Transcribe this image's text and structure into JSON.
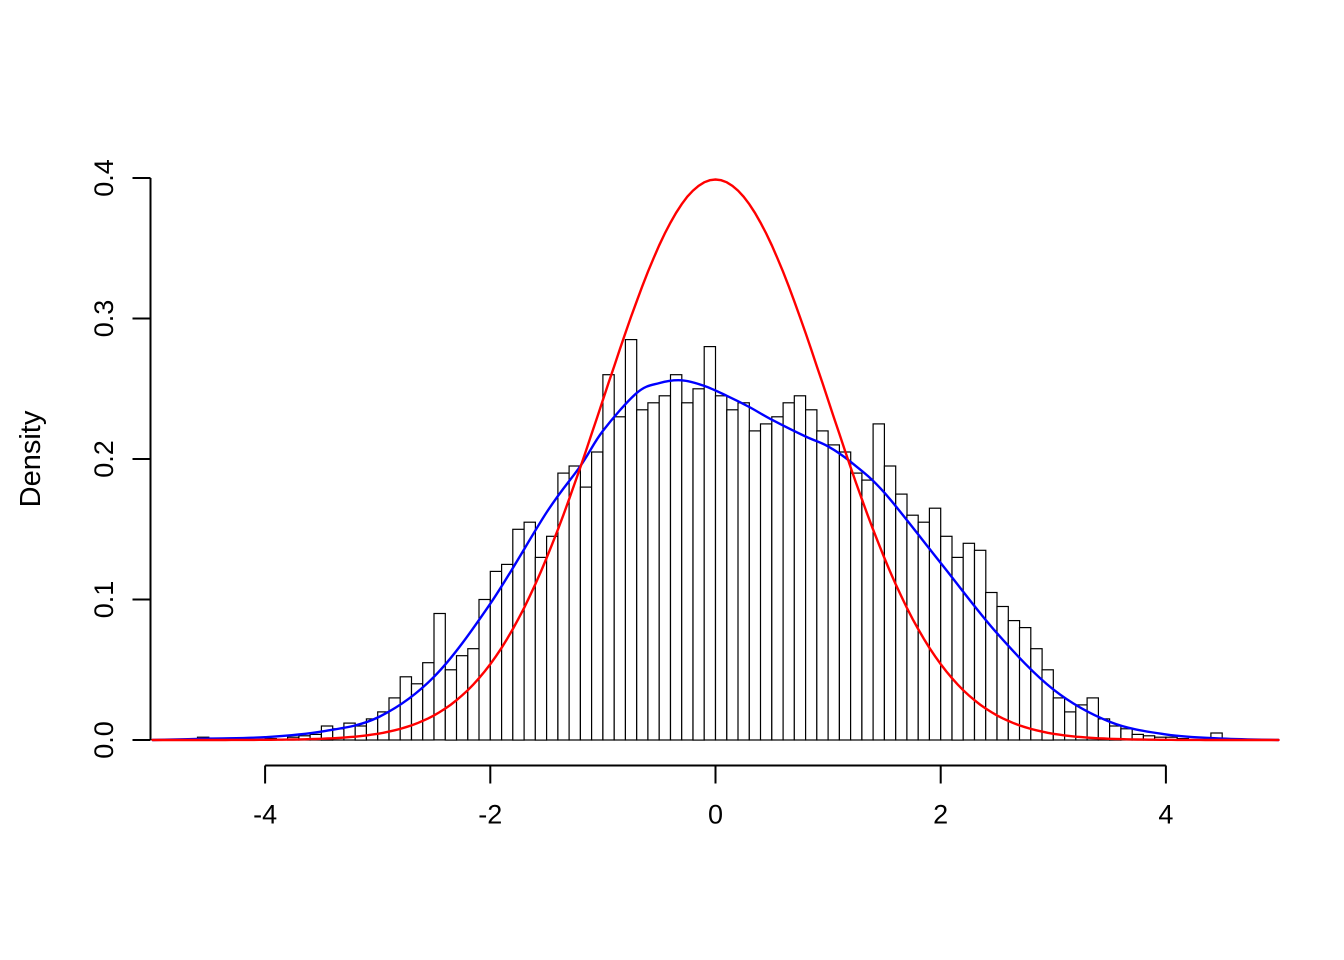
{
  "colors": {
    "background": "#ffffff",
    "axis": "#000000",
    "bar_fill": "#ffffff",
    "bar_stroke": "#000000",
    "kernel_density": "#0000ff",
    "normal_curve": "#ff0000"
  },
  "chart_data": {
    "type": "bar",
    "subtype": "histogram-with-density-curves",
    "title": "",
    "xlabel": "",
    "ylabel": "Density",
    "x_ticks": [
      -4,
      -2,
      0,
      2,
      4
    ],
    "y_ticks": [
      0,
      0.1,
      0.2,
      0.3,
      0.4
    ],
    "y_tick_labels": [
      "0.0",
      "0.1",
      "0.2",
      "0.3",
      "0.4"
    ],
    "xlim": [
      -5,
      5
    ],
    "ylim": [
      0,
      0.42
    ],
    "grid": false,
    "legend": "none",
    "histogram": {
      "bin_start": -4.6,
      "bin_width": 0.1,
      "heights": [
        0.002,
        0.0,
        0.0,
        0.0,
        0.0,
        0.0,
        0.001,
        0.0,
        0.002,
        0.003,
        0.004,
        0.01,
        0.008,
        0.012,
        0.01,
        0.015,
        0.02,
        0.03,
        0.045,
        0.04,
        0.055,
        0.09,
        0.05,
        0.06,
        0.065,
        0.1,
        0.12,
        0.125,
        0.15,
        0.155,
        0.13,
        0.145,
        0.19,
        0.195,
        0.18,
        0.205,
        0.26,
        0.23,
        0.285,
        0.235,
        0.24,
        0.245,
        0.26,
        0.24,
        0.25,
        0.28,
        0.245,
        0.235,
        0.24,
        0.22,
        0.225,
        0.23,
        0.24,
        0.245,
        0.235,
        0.22,
        0.21,
        0.205,
        0.19,
        0.185,
        0.225,
        0.195,
        0.175,
        0.16,
        0.155,
        0.165,
        0.145,
        0.13,
        0.14,
        0.135,
        0.105,
        0.095,
        0.085,
        0.08,
        0.065,
        0.05,
        0.03,
        0.02,
        0.025,
        0.03,
        0.015,
        0.01,
        0.008,
        0.004,
        0.003,
        0.002,
        0.002,
        0.001,
        0.0,
        0.0,
        0.005,
        0.0
      ]
    },
    "series": [
      {
        "name": "kernel-density-estimate",
        "type": "line",
        "color": "#0000ff",
        "points": [
          [
            -5.0,
            0.0
          ],
          [
            -4.5,
            0.001
          ],
          [
            -4.0,
            0.002
          ],
          [
            -3.5,
            0.006
          ],
          [
            -3.0,
            0.016
          ],
          [
            -2.5,
            0.045
          ],
          [
            -2.0,
            0.097
          ],
          [
            -1.5,
            0.162
          ],
          [
            -1.2,
            0.195
          ],
          [
            -1.0,
            0.22
          ],
          [
            -0.7,
            0.247
          ],
          [
            -0.5,
            0.254
          ],
          [
            -0.3,
            0.256
          ],
          [
            -0.1,
            0.252
          ],
          [
            0.1,
            0.245
          ],
          [
            0.3,
            0.237
          ],
          [
            0.5,
            0.228
          ],
          [
            0.8,
            0.216
          ],
          [
            1.0,
            0.209
          ],
          [
            1.2,
            0.198
          ],
          [
            1.5,
            0.176
          ],
          [
            2.0,
            0.126
          ],
          [
            2.5,
            0.076
          ],
          [
            3.0,
            0.036
          ],
          [
            3.5,
            0.013
          ],
          [
            4.0,
            0.004
          ],
          [
            4.5,
            0.001
          ],
          [
            5.0,
            0.0
          ]
        ]
      },
      {
        "name": "standard-normal-density",
        "type": "gaussian",
        "color": "#ff0000",
        "mean": 0,
        "sd": 1,
        "peak": 0.3989,
        "range": [
          -5,
          5
        ]
      }
    ]
  }
}
